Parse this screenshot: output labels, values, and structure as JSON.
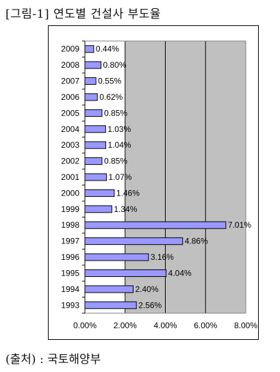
{
  "title": "[그림-1] 연도별 건설사 부도율",
  "source": "(출처) : 국토해양부",
  "chart_data": {
    "type": "bar",
    "orientation": "horizontal",
    "title": "",
    "xlabel": "",
    "ylabel": "",
    "categories": [
      "2009",
      "2008",
      "2007",
      "2006",
      "2005",
      "2004",
      "2003",
      "2002",
      "2001",
      "2000",
      "1999",
      "1998",
      "1997",
      "1996",
      "1995",
      "1994",
      "1993"
    ],
    "values": [
      0.44,
      0.8,
      0.55,
      0.62,
      0.85,
      1.03,
      1.04,
      0.85,
      1.07,
      1.46,
      1.34,
      7.01,
      4.86,
      3.16,
      4.04,
      2.4,
      2.56
    ],
    "value_labels": [
      "0.44%",
      "0.80%",
      "0.55%",
      "0.62%",
      "0.85%",
      "1.03%",
      "1.04%",
      "0.85%",
      "1.07%",
      "1.46%",
      "1.34%",
      "7.01%",
      "4.86%",
      "3.16%",
      "4.04%",
      "2.40%",
      "2.56%"
    ],
    "xlim": [
      0,
      8
    ],
    "xticks": [
      0,
      2,
      4,
      6,
      8
    ],
    "xtick_labels": [
      "0.00%",
      "2.00%",
      "4.00%",
      "6.00%",
      "8.00%"
    ],
    "grid": true,
    "legend": "none",
    "colors": {
      "bar": "#9999ff",
      "bar_border": "#000000",
      "plot_background": "#c0c0c0"
    }
  }
}
